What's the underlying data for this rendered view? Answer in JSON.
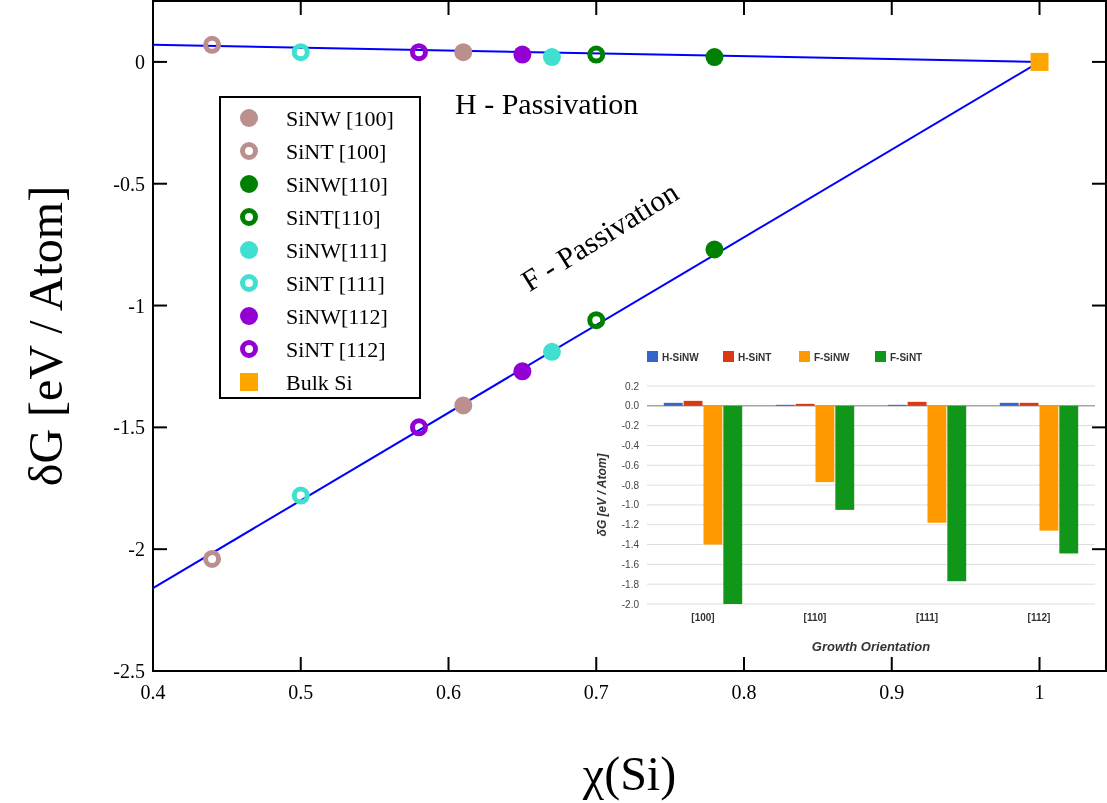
{
  "chart_data": [
    {
      "type": "scatter",
      "xlabel": "χ(Si)",
      "ylabel": "δG [eV / Atom]",
      "xlim": [
        0.4,
        1.045
      ],
      "ylim": [
        -2.5,
        0.25
      ],
      "xticks": [
        0.4,
        0.5,
        0.6,
        0.7,
        0.8,
        0.9,
        1
      ],
      "yticks": [
        -2.5,
        -2,
        -1.5,
        -1,
        -0.5,
        0
      ],
      "legend": "top left",
      "annotations": [
        "H - Passivation",
        "F - Passivation"
      ],
      "series": [
        {
          "type": "line",
          "color": "#0000ff",
          "x": [
            0.4,
            1
          ],
          "values": [
            0.07,
            0
          ],
          "marker": "none"
        },
        {
          "type": "line",
          "color": "#0000ff",
          "x": [
            0.4,
            1
          ],
          "values": [
            -2.16,
            0
          ],
          "marker": "none"
        },
        {
          "name": "SiNW [100]",
          "color": "#bc8f8f",
          "x": [
            0.61,
            0.61
          ],
          "values": [
            0.04,
            -1.41
          ],
          "marker": "circle"
        },
        {
          "name": "SiNT [100]",
          "color": "#bc8f8f",
          "x": [
            0.44,
            0.44
          ],
          "values": [
            0.07,
            -2.04
          ],
          "marker": "circle-open"
        },
        {
          "name": "SiNW[110]",
          "color": "#008000",
          "x": [
            0.78,
            0.78
          ],
          "values": [
            0.02,
            -0.77
          ],
          "marker": "circle"
        },
        {
          "name": "SiNT[110]",
          "color": "#008000",
          "x": [
            0.7,
            0.7
          ],
          "values": [
            0.03,
            -1.06
          ],
          "marker": "circle-open"
        },
        {
          "name": "SiNW[111]",
          "color": "#40e0d0",
          "x": [
            0.67,
            0.67
          ],
          "values": [
            0.02,
            -1.19
          ],
          "marker": "circle"
        },
        {
          "name": "SiNT [111]",
          "color": "#40e0d0",
          "x": [
            0.5,
            0.5
          ],
          "values": [
            0.04,
            -1.78
          ],
          "marker": "circle-open"
        },
        {
          "name": "SiNW[112]",
          "color": "#9400d3",
          "x": [
            0.65,
            0.65
          ],
          "values": [
            0.03,
            -1.27
          ],
          "marker": "circle"
        },
        {
          "name": "SiNT [112]",
          "color": "#9400d3",
          "x": [
            0.58,
            0.58
          ],
          "values": [
            0.04,
            -1.5
          ],
          "marker": "circle-open"
        },
        {
          "name": "Bulk Si",
          "color": "#ffa500",
          "x": [
            1
          ],
          "values": [
            0
          ],
          "marker": "square"
        }
      ]
    },
    {
      "type": "bar",
      "xlabel": "Growth Orientation",
      "ylabel": "δG [eV / Atom]",
      "categories": [
        "[100]",
        "[110]",
        "[111]",
        "[112]"
      ],
      "ylim": [
        -2.0,
        0.2
      ],
      "yticks": [
        {
          "value": -2.0,
          "label": "-2.0"
        },
        {
          "value": -1.8,
          "label": "-1.8"
        },
        {
          "value": -1.6,
          "label": "-1.6"
        },
        {
          "value": -1.4,
          "label": "-1.4"
        },
        {
          "value": -1.2,
          "label": "-1.2"
        },
        {
          "value": -1.0,
          "label": "-1.0"
        },
        {
          "value": -0.8,
          "label": "-0.8"
        },
        {
          "value": -0.6,
          "label": "-0.6"
        },
        {
          "value": -0.4,
          "label": "-0.4"
        },
        {
          "value": -0.2,
          "label": "-0.2"
        },
        {
          "value": 0,
          "label": "0.0"
        },
        {
          "value": 0.2,
          "label": "0.2"
        }
      ],
      "grid": "y",
      "legend": "top",
      "series": [
        {
          "name": "H-SiNW",
          "color": "#3366cc",
          "values": [
            0.03,
            0.01,
            0.01,
            0.03
          ]
        },
        {
          "name": "H-SiNT",
          "color": "#dc3912",
          "values": [
            0.05,
            0.02,
            0.04,
            0.03
          ]
        },
        {
          "name": "F-SiNW",
          "color": "#ff9900",
          "values": [
            -1.4,
            -0.77,
            -1.18,
            -1.26
          ]
        },
        {
          "name": "F-SiNT",
          "color": "#109618",
          "values": [
            -2.0,
            -1.05,
            -1.77,
            -1.49
          ]
        }
      ]
    }
  ]
}
